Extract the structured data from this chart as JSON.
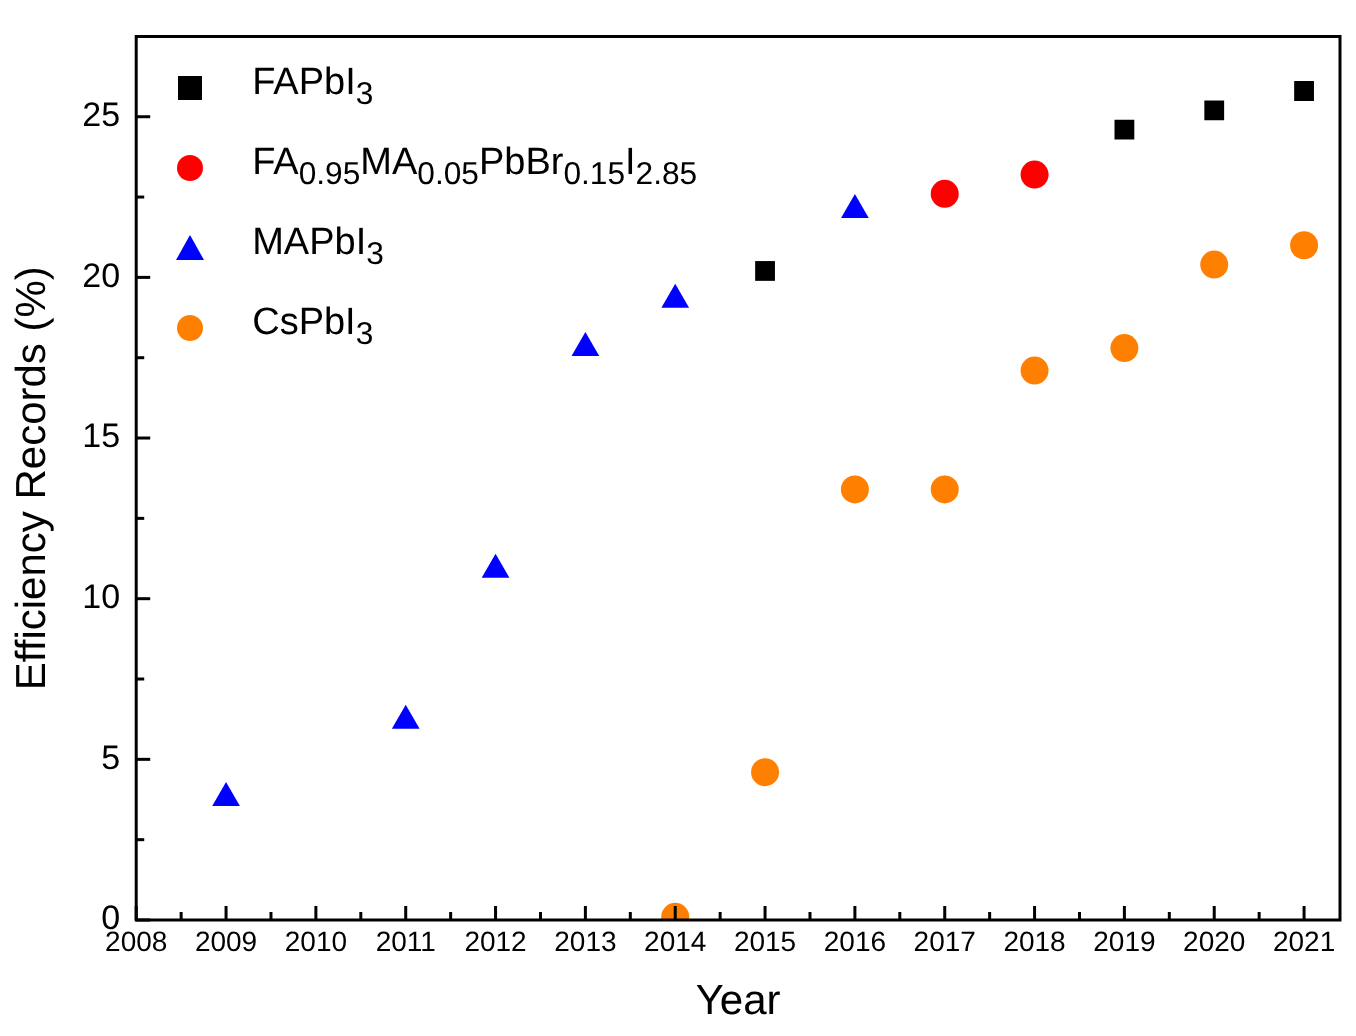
{
  "chart_data": {
    "type": "scatter",
    "xlabel": "Year",
    "ylabel": "Efficiency Records (%)",
    "xlim": [
      2008,
      2021.4
    ],
    "xticks": [
      2008,
      {
        "value": 2008.5,
        "label": null
      },
      2009,
      {
        "value": 2009.5,
        "label": null
      },
      2010,
      {
        "value": 2010.5,
        "label": null
      },
      2011,
      {
        "value": 2011.5,
        "label": null
      },
      2012,
      {
        "value": 2012.5,
        "label": null
      },
      2013,
      {
        "value": 2013.5,
        "label": null
      },
      2014,
      {
        "value": 2014.5,
        "label": null
      },
      2015,
      {
        "value": 2015.5,
        "label": null
      },
      2016,
      {
        "value": 2016.5,
        "label": null
      },
      2017,
      {
        "value": 2017.5,
        "label": null
      },
      2018,
      {
        "value": 2018.5,
        "label": null
      },
      2019,
      {
        "value": 2019.5,
        "label": null
      },
      2020,
      {
        "value": 2020.5,
        "label": null
      },
      2021
    ],
    "ylim": [
      0,
      27.5
    ],
    "yticks": [
      0,
      {
        "value": 2.5,
        "label": null
      },
      5,
      {
        "value": 7.5,
        "label": null
      },
      10,
      {
        "value": 12.5,
        "label": null
      },
      15,
      {
        "value": 17.5,
        "label": null
      },
      20,
      {
        "value": 22.5,
        "label": null
      },
      25
    ],
    "grid": false,
    "legend": "top left",
    "series": [
      {
        "name": "FAPbI$_{3}$",
        "color": "#000000",
        "marker": "square",
        "x": [
          2015,
          2019,
          2020,
          2021
        ],
        "values": [
          20.2,
          24.6,
          25.2,
          25.8
        ]
      },
      {
        "name": "FA$_{0.95}$MA$_{0.05}$PbBr$_{0.15}$I$_{2.85}$",
        "color": "#ff0000",
        "marker": "circle",
        "x": [
          2017,
          2018
        ],
        "values": [
          22.6,
          23.2
        ]
      },
      {
        "name": "MAPbI$_{3}$",
        "color": "#0000ff",
        "marker": "triangle",
        "x": [
          2009,
          2011,
          2012,
          2013,
          2014,
          2016
        ],
        "values": [
          3.8,
          6.2,
          10.9,
          17.8,
          19.3,
          22.1
        ]
      },
      {
        "name": "CsPbI$_{3}$",
        "color": "#ff8000",
        "marker": "circle",
        "x": [
          2014,
          2015,
          2016,
          2017,
          2018,
          2019,
          2020,
          2021
        ],
        "values": [
          0.1,
          4.6,
          13.4,
          13.4,
          17.1,
          17.8,
          20.4,
          21.0
        ]
      }
    ]
  }
}
